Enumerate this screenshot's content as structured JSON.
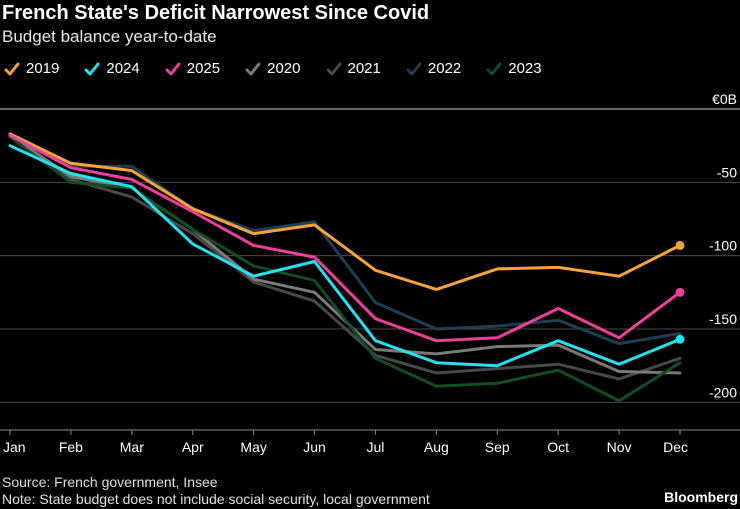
{
  "chart_data": {
    "type": "line",
    "title": "French State's Deficit Narrowest Since Covid",
    "subtitle": "Budget balance year-to-date",
    "unit_label": "€0B",
    "xlabel": "",
    "ylabel": "",
    "categories": [
      "Jan",
      "Feb",
      "Mar",
      "Apr",
      "May",
      "Jun",
      "Jul",
      "Aug",
      "Sep",
      "Oct",
      "Nov",
      "Dec"
    ],
    "ylim": [
      -210,
      0
    ],
    "yticks": [
      0,
      -50,
      -100,
      -150,
      -200
    ],
    "ytick_labels": [
      "€0B",
      "-50",
      "-100",
      "-150",
      "-200"
    ],
    "grid": true,
    "legend_position": "top-left",
    "series": [
      {
        "name": "2021",
        "color": "#484848",
        "values": [
          -19,
          -48,
          -60,
          -85,
          -118,
          -131,
          -168,
          -180,
          -177,
          -174,
          -184,
          -170
        ]
      },
      {
        "name": "2020",
        "color": "#7a7a7a",
        "values": [
          -18,
          -46,
          -54,
          -82,
          -116,
          -125,
          -164,
          -167,
          -162,
          -161,
          -179,
          -180
        ]
      },
      {
        "name": "2022",
        "color": "#1d3f56",
        "values": [
          -18,
          -39,
          -39,
          -68,
          -83,
          -77,
          -132,
          -150,
          -148,
          -144,
          -160,
          -153
        ]
      },
      {
        "name": "2023",
        "color": "#134d23",
        "values": [
          -19,
          -50,
          -54,
          -82,
          -107,
          -117,
          -170,
          -189,
          -187,
          -178,
          -199,
          -173
        ]
      },
      {
        "name": "2019",
        "color": "#f7a33c",
        "values": [
          -17,
          -37,
          -42,
          -68,
          -85,
          -79,
          -110,
          -123,
          -109,
          -108,
          -114,
          -93
        ]
      },
      {
        "name": "2025",
        "color": "#ef3f9c",
        "values": [
          -18,
          -40,
          -48,
          -70,
          -93,
          -101,
          -143,
          -158,
          -156,
          -136,
          -156,
          -125
        ]
      },
      {
        "name": "2024",
        "color": "#23e1ee",
        "values": [
          -25,
          -44,
          -53,
          -92,
          -114,
          -104,
          -158,
          -173,
          -175,
          -158,
          -174,
          -157
        ]
      }
    ],
    "end_markers": [
      "2019",
      "2025",
      "2024"
    ]
  },
  "legend": [
    {
      "label": "2019",
      "color": "#f7a33c"
    },
    {
      "label": "2024",
      "color": "#23e1ee"
    },
    {
      "label": "2025",
      "color": "#ef3f9c"
    },
    {
      "label": "2020",
      "color": "#7a7a7a"
    },
    {
      "label": "2021",
      "color": "#484848"
    },
    {
      "label": "2022",
      "color": "#1d3f56"
    },
    {
      "label": "2023",
      "color": "#134d23"
    }
  ],
  "footer": {
    "source": "Source: French government, Insee",
    "note": "Note: State budget does not include social security, local government",
    "brand": "Bloomberg"
  }
}
